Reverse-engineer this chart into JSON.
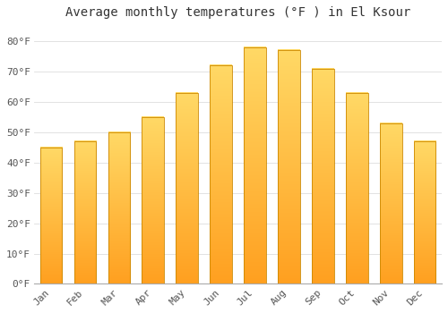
{
  "title": "Average monthly temperatures (°F ) in El Ksour",
  "months": [
    "Jan",
    "Feb",
    "Mar",
    "Apr",
    "May",
    "Jun",
    "Jul",
    "Aug",
    "Sep",
    "Oct",
    "Nov",
    "Dec"
  ],
  "values": [
    45,
    47,
    50,
    55,
    63,
    72,
    78,
    77,
    71,
    63,
    53,
    47
  ],
  "bar_color_top": "#FFD966",
  "bar_color_bottom": "#FFA020",
  "bar_edge_color": "#CC8800",
  "background_color": "#FFFFFF",
  "plot_bg_color": "#FFFFFF",
  "ylim": [
    0,
    85
  ],
  "yticks": [
    0,
    10,
    20,
    30,
    40,
    50,
    60,
    70,
    80
  ],
  "ytick_labels": [
    "0°F",
    "10°F",
    "20°F",
    "30°F",
    "40°F",
    "50°F",
    "60°F",
    "70°F",
    "80°F"
  ],
  "grid_color": "#DDDDDD",
  "title_fontsize": 10,
  "tick_fontsize": 8
}
